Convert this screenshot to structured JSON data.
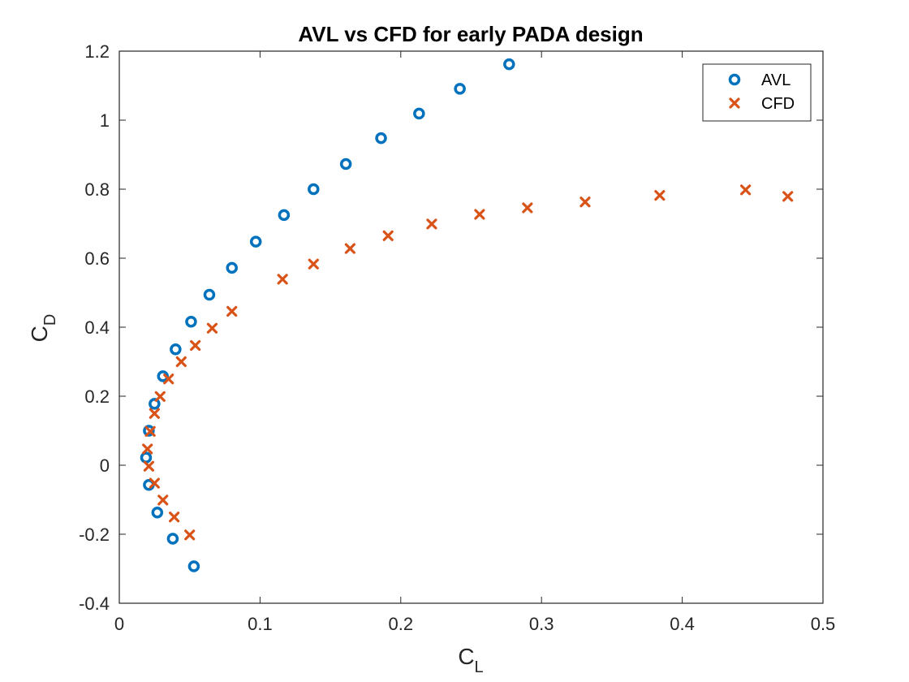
{
  "chart_data": {
    "type": "scatter",
    "title": "AVL vs CFD for early PADA design",
    "xlabel": {
      "main": "C",
      "sub": "L"
    },
    "ylabel": {
      "main": "C",
      "sub": "D"
    },
    "xlim": [
      0,
      0.5
    ],
    "ylim": [
      -0.4,
      1.2
    ],
    "xticks": [
      0,
      0.1,
      0.2,
      0.3,
      0.4,
      0.5
    ],
    "xtick_labels": [
      "0",
      "0.1",
      "0.2",
      "0.3",
      "0.4",
      "0.5"
    ],
    "yticks": [
      -0.4,
      -0.2,
      0,
      0.2,
      0.4,
      0.6,
      0.8,
      1,
      1.2
    ],
    "ytick_labels": [
      "-0.4",
      "-0.2",
      "0",
      "0.2",
      "0.4",
      "0.6",
      "0.8",
      "1",
      "1.2"
    ],
    "grid": false,
    "legend_position": "top-right",
    "series": [
      {
        "name": "AVL",
        "marker": "circle",
        "color": "#0072BD",
        "points": [
          [
            0.053,
            -0.293
          ],
          [
            0.038,
            -0.213
          ],
          [
            0.027,
            -0.137
          ],
          [
            0.021,
            -0.057
          ],
          [
            0.019,
            0.022
          ],
          [
            0.021,
            0.1
          ],
          [
            0.025,
            0.178
          ],
          [
            0.031,
            0.258
          ],
          [
            0.04,
            0.336
          ],
          [
            0.051,
            0.416
          ],
          [
            0.064,
            0.494
          ],
          [
            0.08,
            0.572
          ],
          [
            0.097,
            0.648
          ],
          [
            0.117,
            0.725
          ],
          [
            0.138,
            0.8
          ],
          [
            0.161,
            0.873
          ],
          [
            0.186,
            0.948
          ],
          [
            0.213,
            1.019
          ],
          [
            0.242,
            1.091
          ],
          [
            0.277,
            1.162
          ]
        ]
      },
      {
        "name": "CFD",
        "marker": "x",
        "color": "#D95319",
        "points": [
          [
            0.05,
            -0.202
          ],
          [
            0.039,
            -0.15
          ],
          [
            0.031,
            -0.101
          ],
          [
            0.025,
            -0.052
          ],
          [
            0.021,
            -0.003
          ],
          [
            0.02,
            0.047
          ],
          [
            0.022,
            0.098
          ],
          [
            0.025,
            0.15
          ],
          [
            0.029,
            0.199
          ],
          [
            0.035,
            0.25
          ],
          [
            0.044,
            0.3
          ],
          [
            0.054,
            0.347
          ],
          [
            0.066,
            0.397
          ],
          [
            0.08,
            0.446
          ],
          [
            0.116,
            0.539
          ],
          [
            0.138,
            0.583
          ],
          [
            0.164,
            0.628
          ],
          [
            0.191,
            0.665
          ],
          [
            0.222,
            0.699
          ],
          [
            0.256,
            0.727
          ],
          [
            0.29,
            0.746
          ],
          [
            0.331,
            0.763
          ],
          [
            0.384,
            0.782
          ],
          [
            0.445,
            0.798
          ],
          [
            0.475,
            0.779
          ]
        ]
      }
    ]
  }
}
